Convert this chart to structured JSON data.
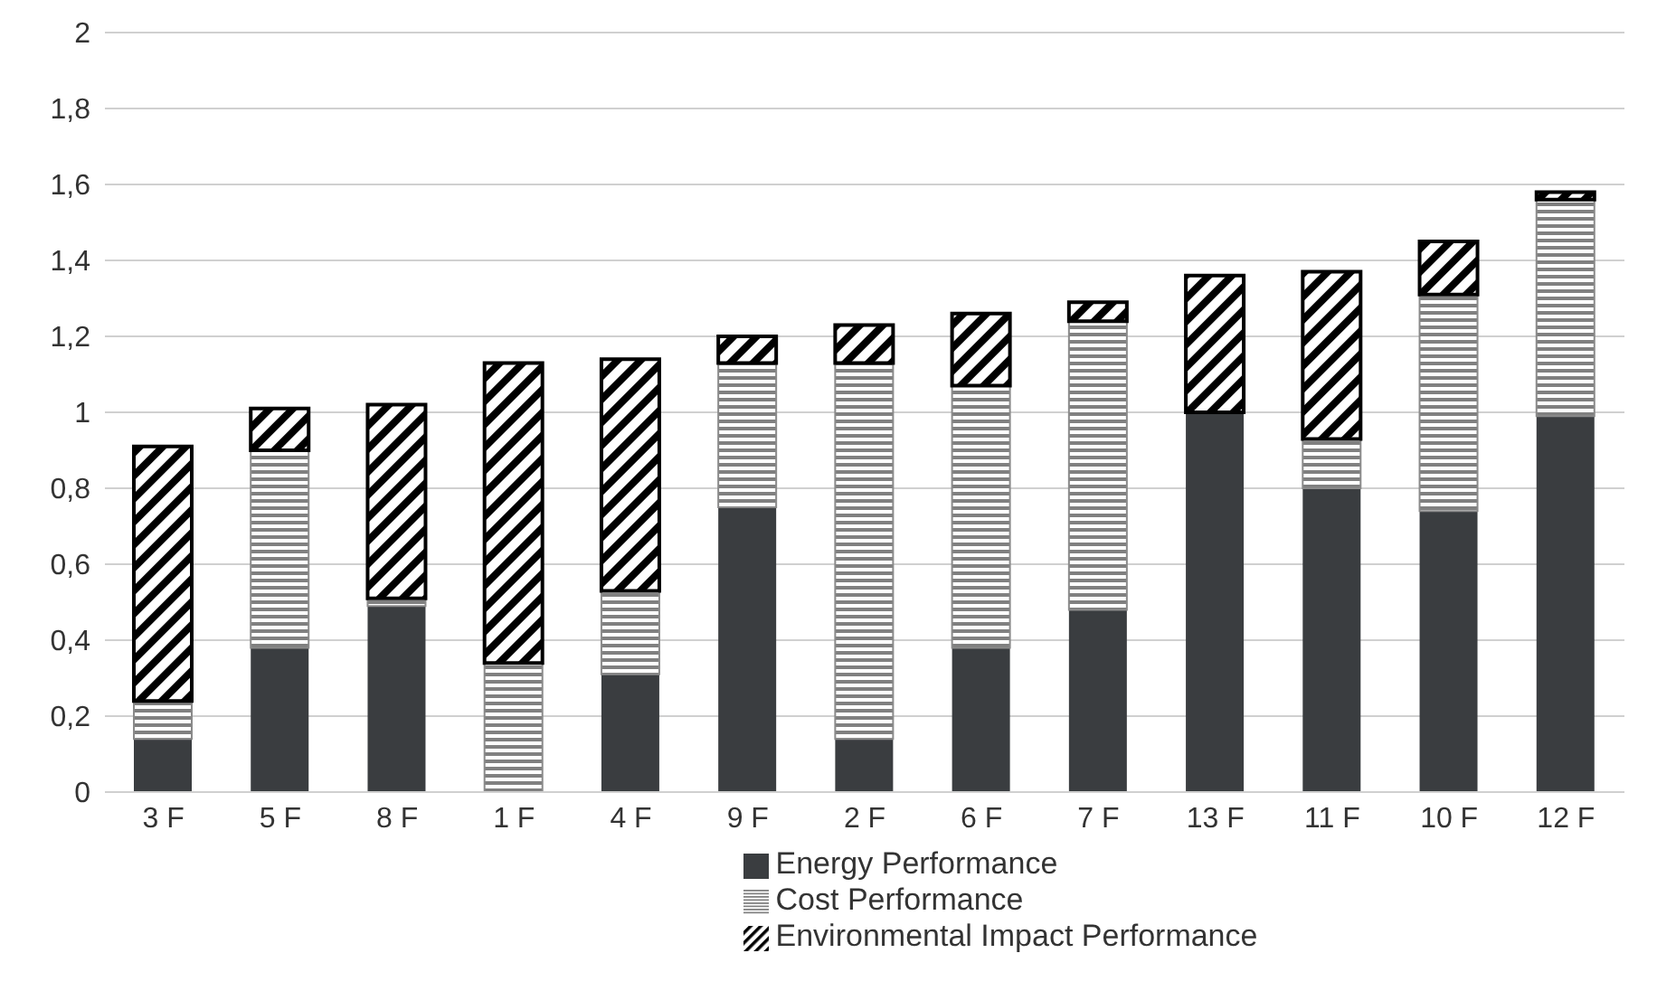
{
  "chart_data": {
    "type": "bar",
    "stacked": true,
    "categories": [
      "3 F",
      "5 F",
      "8 F",
      "1 F",
      "4 F",
      "9 F",
      "2 F",
      "6 F",
      "7 F",
      "13 F",
      "11 F",
      "10 F",
      "12 F"
    ],
    "series": [
      {
        "name": "Energy Performance",
        "color": "#3a3d40",
        "values": [
          0.14,
          0.38,
          0.49,
          0,
          0.31,
          0.75,
          0.14,
          0.38,
          0.48,
          1.0,
          0.8,
          0.74,
          0.99
        ]
      },
      {
        "name": "Cost Performance",
        "color": "#808080",
        "values": [
          0.1,
          0.52,
          0.02,
          0.34,
          0.22,
          0.38,
          0.99,
          0.69,
          0.76,
          0,
          0.13,
          0.57,
          0.57
        ]
      },
      {
        "name": "Environmental Impact Performance",
        "color": "#000000",
        "values": [
          0.67,
          0.11,
          0.51,
          0.79,
          0.61,
          0.07,
          0.1,
          0.19,
          0.05,
          0.36,
          0.44,
          0.14,
          0.02
        ]
      }
    ],
    "ylim": [
      0,
      2
    ],
    "yticks": [
      {
        "value": 0,
        "label": "0"
      },
      {
        "value": 0.2,
        "label": "0,2"
      },
      {
        "value": 0.4,
        "label": "0,4"
      },
      {
        "value": 0.6,
        "label": "0,6"
      },
      {
        "value": 0.8,
        "label": "0,8"
      },
      {
        "value": 1,
        "label": "1"
      },
      {
        "value": 1.2,
        "label": "1,2"
      },
      {
        "value": 1.4,
        "label": "1,4"
      },
      {
        "value": 1.6,
        "label": "1,6"
      },
      {
        "value": 1.8,
        "label": "1,8"
      },
      {
        "value": 2,
        "label": "2"
      }
    ],
    "grid": "y",
    "legend": "bottom"
  }
}
